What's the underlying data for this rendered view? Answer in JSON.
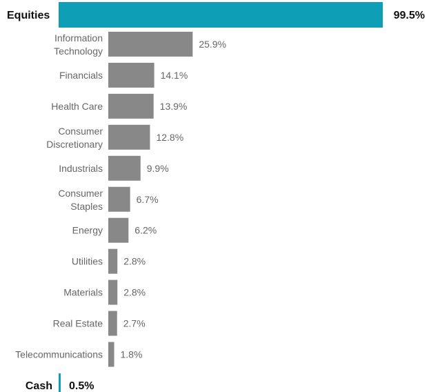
{
  "chart_data": {
    "type": "bar",
    "orientation": "horizontal",
    "xlim": [
      0,
      100
    ],
    "value_suffix": "%",
    "colors": {
      "summary_bar": "#0e9fb6",
      "sector_bar": "#888888",
      "summary_text": "#111111",
      "sector_text": "#666666"
    },
    "summary": [
      {
        "label": "Equities",
        "value": 99.5,
        "display": "99.5%"
      },
      {
        "label": "Cash",
        "value": 0.5,
        "display": "0.5%"
      }
    ],
    "categories": [
      [
        "Information",
        "Technology"
      ],
      [
        "Financials"
      ],
      [
        "Health Care"
      ],
      [
        "Consumer",
        "Discretionary"
      ],
      [
        "Industrials"
      ],
      [
        "Consumer",
        "Staples"
      ],
      [
        "Energy"
      ],
      [
        "Utilities"
      ],
      [
        "Materials"
      ],
      [
        "Real Estate"
      ],
      [
        "Telecommunications"
      ]
    ],
    "values": [
      25.9,
      14.1,
      13.9,
      12.8,
      9.9,
      6.7,
      6.2,
      2.8,
      2.8,
      2.7,
      1.8
    ],
    "value_labels": [
      "25.9%",
      "14.1%",
      "13.9%",
      "12.8%",
      "9.9%",
      "6.7%",
      "6.2%",
      "2.8%",
      "2.8%",
      "2.7%",
      "1.8%"
    ]
  }
}
